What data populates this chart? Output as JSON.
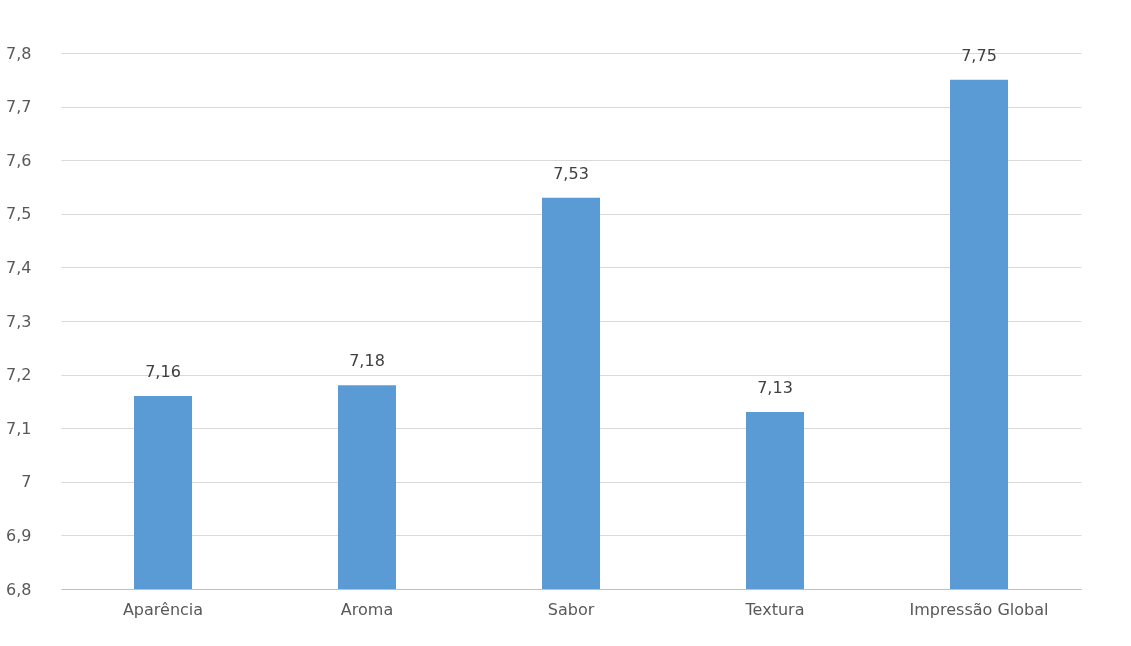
{
  "chart_data": {
    "type": "bar",
    "categories": [
      "Aparência",
      "Aroma",
      "Sabor",
      "Textura",
      "Impressão Global"
    ],
    "values": [
      7.16,
      7.18,
      7.53,
      7.13,
      7.75
    ],
    "value_labels": [
      "7,16",
      "7,18",
      "7,53",
      "7,13",
      "7,75"
    ],
    "color": "#5b9bd5",
    "ylim": [
      6.8,
      7.8
    ],
    "yticks": [
      {
        "value": 6.8,
        "label": "6,8"
      },
      {
        "value": 6.9,
        "label": "6,9"
      },
      7,
      {
        "value": 7.1,
        "label": "7,1"
      },
      {
        "value": 7.2,
        "label": "7,2"
      },
      {
        "value": 7.3,
        "label": "7,3"
      },
      {
        "value": 7.4,
        "label": "7,4"
      },
      {
        "value": 7.5,
        "label": "7,5"
      },
      {
        "value": 7.6,
        "label": "7,6"
      },
      {
        "value": 7.7,
        "label": "7,7"
      },
      {
        "value": 7.8,
        "label": "7,8"
      }
    ],
    "grid": "y"
  }
}
